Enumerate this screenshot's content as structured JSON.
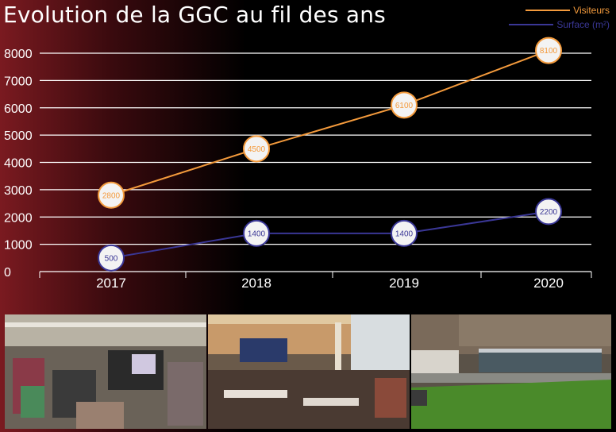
{
  "title": "Evolution de la GGC au fil des ans",
  "chart_data": {
    "type": "line",
    "categories": [
      "2017",
      "2018",
      "2019",
      "2020"
    ],
    "ylim": [
      0,
      8000
    ],
    "yticks": [
      0,
      1000,
      2000,
      3000,
      4000,
      5000,
      6000,
      7000,
      8000
    ],
    "series": [
      {
        "name": "Visiteurs",
        "color": "#f39a3c",
        "values": [
          2800,
          4500,
          6100,
          8100
        ]
      },
      {
        "name": "Surface (m²)",
        "color": "#3a3796",
        "values": [
          500,
          1400,
          1400,
          2200
        ]
      }
    ],
    "legend": "top-right",
    "grid": true,
    "data_labels": true
  },
  "photos": [
    {
      "name": "photo-exhibition-hall-stands"
    },
    {
      "name": "photo-crowd-dining-area"
    },
    {
      "name": "photo-building-exterior-lawn"
    }
  ]
}
